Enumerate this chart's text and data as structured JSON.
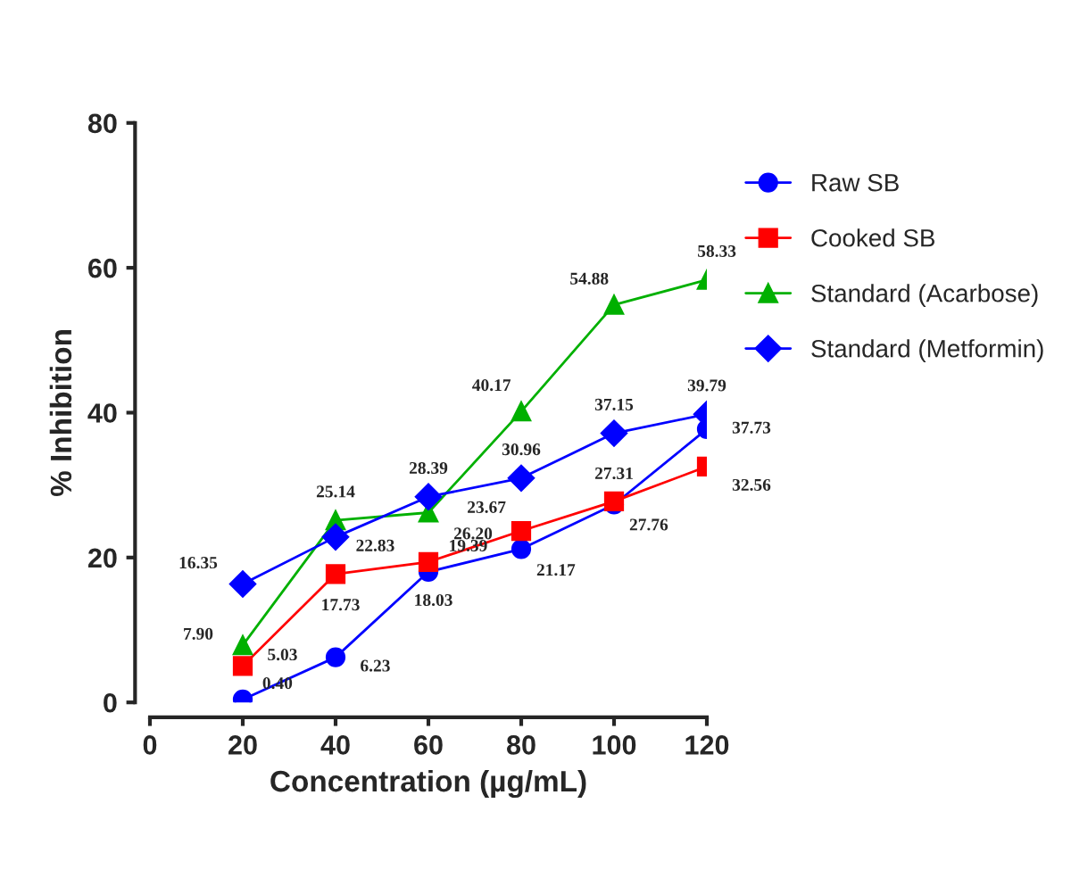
{
  "chart_data": {
    "type": "line",
    "xlabel": "Concentration (µg/mL)",
    "ylabel": "% Inhibition",
    "x": [
      20,
      40,
      60,
      80,
      100,
      120
    ],
    "series": [
      {
        "name": "Raw SB",
        "color": "#0000ff",
        "marker": "circle",
        "values": [
          0.4,
          6.23,
          18.03,
          21.17,
          27.31,
          37.73
        ],
        "value_labels": [
          "0.40",
          "6.23",
          "18.03",
          "21.17",
          "27.31",
          "37.73"
        ]
      },
      {
        "name": "Cooked SB",
        "color": "#ff0000",
        "marker": "square",
        "values": [
          5.03,
          17.73,
          19.39,
          23.67,
          27.76,
          32.56
        ],
        "value_labels": [
          "5.03",
          "17.73",
          "19.39",
          "23.67",
          "27.76",
          "32.56"
        ]
      },
      {
        "name": "Standard (Acarbose)",
        "color": "#00b000",
        "marker": "triangle",
        "values": [
          7.9,
          25.14,
          26.2,
          40.17,
          54.88,
          58.33
        ],
        "value_labels": [
          "7.90",
          "25.14",
          "26.20",
          "40.17",
          "54.88",
          "58.33"
        ]
      },
      {
        "name": "Standard (Metformin)",
        "color": "#0000ff",
        "marker": "diamond",
        "values": [
          16.35,
          22.83,
          28.39,
          30.96,
          37.15,
          39.79
        ],
        "value_labels": [
          "16.35",
          "22.83",
          "28.39",
          "30.96",
          "37.15",
          "39.79"
        ]
      }
    ],
    "xlim": [
      0,
      120
    ],
    "xticks": [
      0,
      20,
      40,
      60,
      80,
      100,
      120
    ],
    "ylim": [
      0,
      80
    ],
    "yticks": [
      0,
      20,
      40,
      60,
      80
    ],
    "legend": "right",
    "grid": false
  }
}
